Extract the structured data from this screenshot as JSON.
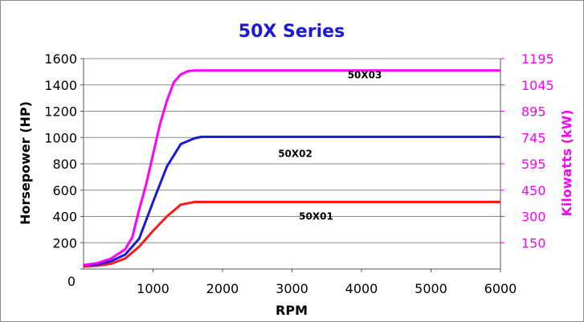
{
  "chart_data": {
    "type": "line",
    "title": "50X Series",
    "xlabel": "RPM",
    "ylabel": "Horsepower (HP)",
    "y2label": "Kilowatts (kW)",
    "xlim": [
      0,
      6000
    ],
    "ylim": [
      0,
      1600
    ],
    "x_ticks": [
      "0",
      "1000",
      "2000",
      "3000",
      "4000",
      "5000",
      "6000"
    ],
    "y_ticks": [
      "0",
      "200",
      "400",
      "600",
      "800",
      "1000",
      "1200",
      "1400",
      "1600"
    ],
    "y2_ticks": [
      "150",
      "300",
      "450",
      "595",
      "745",
      "895",
      "1045",
      "1195"
    ],
    "grid": true,
    "series": [
      {
        "name": "50X01",
        "color": "#ff1a1a",
        "x": [
          0,
          200,
          400,
          600,
          800,
          1000,
          1200,
          1400,
          1600,
          2000,
          3000,
          4000,
          5000,
          6000
        ],
        "y": [
          20,
          25,
          40,
          80,
          170,
          290,
          400,
          490,
          510,
          510,
          510,
          510,
          510,
          510
        ]
      },
      {
        "name": "50X02",
        "color": "#1a1ad6",
        "x": [
          0,
          200,
          400,
          600,
          800,
          1000,
          1200,
          1400,
          1600,
          1700,
          2000,
          3000,
          4000,
          5000,
          6000
        ],
        "y": [
          25,
          35,
          60,
          110,
          230,
          510,
          780,
          950,
          995,
          1005,
          1005,
          1005,
          1005,
          1005,
          1005
        ]
      },
      {
        "name": "50X03",
        "color": "#ff00ff",
        "x": [
          0,
          200,
          400,
          600,
          700,
          800,
          900,
          1000,
          1100,
          1200,
          1300,
          1400,
          1500,
          1600,
          1700,
          2000,
          3000,
          4000,
          5000,
          6000
        ],
        "y": [
          30,
          45,
          80,
          150,
          240,
          450,
          640,
          870,
          1100,
          1280,
          1420,
          1480,
          1505,
          1510,
          1510,
          1510,
          1510,
          1510,
          1510,
          1510
        ]
      }
    ]
  }
}
